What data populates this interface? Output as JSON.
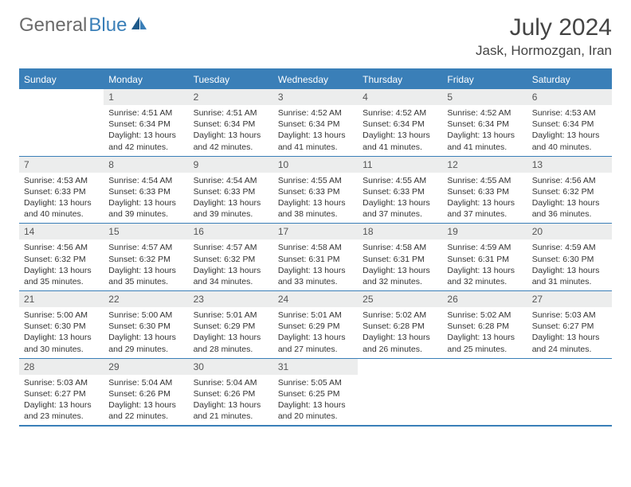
{
  "logo": {
    "gray": "General",
    "blue": "Blue"
  },
  "title": "July 2024",
  "location": "Jask, Hormozgan, Iran",
  "colors": {
    "accent": "#3a7fb8",
    "daynum_bg": "#eceded",
    "text": "#333333",
    "logo_gray": "#6b6b6b"
  },
  "weekdays": [
    "Sunday",
    "Monday",
    "Tuesday",
    "Wednesday",
    "Thursday",
    "Friday",
    "Saturday"
  ],
  "weeks": [
    [
      {
        "n": "",
        "sr": "",
        "ss": "",
        "dl1": "",
        "dl2": ""
      },
      {
        "n": "1",
        "sr": "Sunrise: 4:51 AM",
        "ss": "Sunset: 6:34 PM",
        "dl1": "Daylight: 13 hours",
        "dl2": "and 42 minutes."
      },
      {
        "n": "2",
        "sr": "Sunrise: 4:51 AM",
        "ss": "Sunset: 6:34 PM",
        "dl1": "Daylight: 13 hours",
        "dl2": "and 42 minutes."
      },
      {
        "n": "3",
        "sr": "Sunrise: 4:52 AM",
        "ss": "Sunset: 6:34 PM",
        "dl1": "Daylight: 13 hours",
        "dl2": "and 41 minutes."
      },
      {
        "n": "4",
        "sr": "Sunrise: 4:52 AM",
        "ss": "Sunset: 6:34 PM",
        "dl1": "Daylight: 13 hours",
        "dl2": "and 41 minutes."
      },
      {
        "n": "5",
        "sr": "Sunrise: 4:52 AM",
        "ss": "Sunset: 6:34 PM",
        "dl1": "Daylight: 13 hours",
        "dl2": "and 41 minutes."
      },
      {
        "n": "6",
        "sr": "Sunrise: 4:53 AM",
        "ss": "Sunset: 6:34 PM",
        "dl1": "Daylight: 13 hours",
        "dl2": "and 40 minutes."
      }
    ],
    [
      {
        "n": "7",
        "sr": "Sunrise: 4:53 AM",
        "ss": "Sunset: 6:33 PM",
        "dl1": "Daylight: 13 hours",
        "dl2": "and 40 minutes."
      },
      {
        "n": "8",
        "sr": "Sunrise: 4:54 AM",
        "ss": "Sunset: 6:33 PM",
        "dl1": "Daylight: 13 hours",
        "dl2": "and 39 minutes."
      },
      {
        "n": "9",
        "sr": "Sunrise: 4:54 AM",
        "ss": "Sunset: 6:33 PM",
        "dl1": "Daylight: 13 hours",
        "dl2": "and 39 minutes."
      },
      {
        "n": "10",
        "sr": "Sunrise: 4:55 AM",
        "ss": "Sunset: 6:33 PM",
        "dl1": "Daylight: 13 hours",
        "dl2": "and 38 minutes."
      },
      {
        "n": "11",
        "sr": "Sunrise: 4:55 AM",
        "ss": "Sunset: 6:33 PM",
        "dl1": "Daylight: 13 hours",
        "dl2": "and 37 minutes."
      },
      {
        "n": "12",
        "sr": "Sunrise: 4:55 AM",
        "ss": "Sunset: 6:33 PM",
        "dl1": "Daylight: 13 hours",
        "dl2": "and 37 minutes."
      },
      {
        "n": "13",
        "sr": "Sunrise: 4:56 AM",
        "ss": "Sunset: 6:32 PM",
        "dl1": "Daylight: 13 hours",
        "dl2": "and 36 minutes."
      }
    ],
    [
      {
        "n": "14",
        "sr": "Sunrise: 4:56 AM",
        "ss": "Sunset: 6:32 PM",
        "dl1": "Daylight: 13 hours",
        "dl2": "and 35 minutes."
      },
      {
        "n": "15",
        "sr": "Sunrise: 4:57 AM",
        "ss": "Sunset: 6:32 PM",
        "dl1": "Daylight: 13 hours",
        "dl2": "and 35 minutes."
      },
      {
        "n": "16",
        "sr": "Sunrise: 4:57 AM",
        "ss": "Sunset: 6:32 PM",
        "dl1": "Daylight: 13 hours",
        "dl2": "and 34 minutes."
      },
      {
        "n": "17",
        "sr": "Sunrise: 4:58 AM",
        "ss": "Sunset: 6:31 PM",
        "dl1": "Daylight: 13 hours",
        "dl2": "and 33 minutes."
      },
      {
        "n": "18",
        "sr": "Sunrise: 4:58 AM",
        "ss": "Sunset: 6:31 PM",
        "dl1": "Daylight: 13 hours",
        "dl2": "and 32 minutes."
      },
      {
        "n": "19",
        "sr": "Sunrise: 4:59 AM",
        "ss": "Sunset: 6:31 PM",
        "dl1": "Daylight: 13 hours",
        "dl2": "and 32 minutes."
      },
      {
        "n": "20",
        "sr": "Sunrise: 4:59 AM",
        "ss": "Sunset: 6:30 PM",
        "dl1": "Daylight: 13 hours",
        "dl2": "and 31 minutes."
      }
    ],
    [
      {
        "n": "21",
        "sr": "Sunrise: 5:00 AM",
        "ss": "Sunset: 6:30 PM",
        "dl1": "Daylight: 13 hours",
        "dl2": "and 30 minutes."
      },
      {
        "n": "22",
        "sr": "Sunrise: 5:00 AM",
        "ss": "Sunset: 6:30 PM",
        "dl1": "Daylight: 13 hours",
        "dl2": "and 29 minutes."
      },
      {
        "n": "23",
        "sr": "Sunrise: 5:01 AM",
        "ss": "Sunset: 6:29 PM",
        "dl1": "Daylight: 13 hours",
        "dl2": "and 28 minutes."
      },
      {
        "n": "24",
        "sr": "Sunrise: 5:01 AM",
        "ss": "Sunset: 6:29 PM",
        "dl1": "Daylight: 13 hours",
        "dl2": "and 27 minutes."
      },
      {
        "n": "25",
        "sr": "Sunrise: 5:02 AM",
        "ss": "Sunset: 6:28 PM",
        "dl1": "Daylight: 13 hours",
        "dl2": "and 26 minutes."
      },
      {
        "n": "26",
        "sr": "Sunrise: 5:02 AM",
        "ss": "Sunset: 6:28 PM",
        "dl1": "Daylight: 13 hours",
        "dl2": "and 25 minutes."
      },
      {
        "n": "27",
        "sr": "Sunrise: 5:03 AM",
        "ss": "Sunset: 6:27 PM",
        "dl1": "Daylight: 13 hours",
        "dl2": "and 24 minutes."
      }
    ],
    [
      {
        "n": "28",
        "sr": "Sunrise: 5:03 AM",
        "ss": "Sunset: 6:27 PM",
        "dl1": "Daylight: 13 hours",
        "dl2": "and 23 minutes."
      },
      {
        "n": "29",
        "sr": "Sunrise: 5:04 AM",
        "ss": "Sunset: 6:26 PM",
        "dl1": "Daylight: 13 hours",
        "dl2": "and 22 minutes."
      },
      {
        "n": "30",
        "sr": "Sunrise: 5:04 AM",
        "ss": "Sunset: 6:26 PM",
        "dl1": "Daylight: 13 hours",
        "dl2": "and 21 minutes."
      },
      {
        "n": "31",
        "sr": "Sunrise: 5:05 AM",
        "ss": "Sunset: 6:25 PM",
        "dl1": "Daylight: 13 hours",
        "dl2": "and 20 minutes."
      },
      {
        "n": "",
        "sr": "",
        "ss": "",
        "dl1": "",
        "dl2": ""
      },
      {
        "n": "",
        "sr": "",
        "ss": "",
        "dl1": "",
        "dl2": ""
      },
      {
        "n": "",
        "sr": "",
        "ss": "",
        "dl1": "",
        "dl2": ""
      }
    ]
  ]
}
